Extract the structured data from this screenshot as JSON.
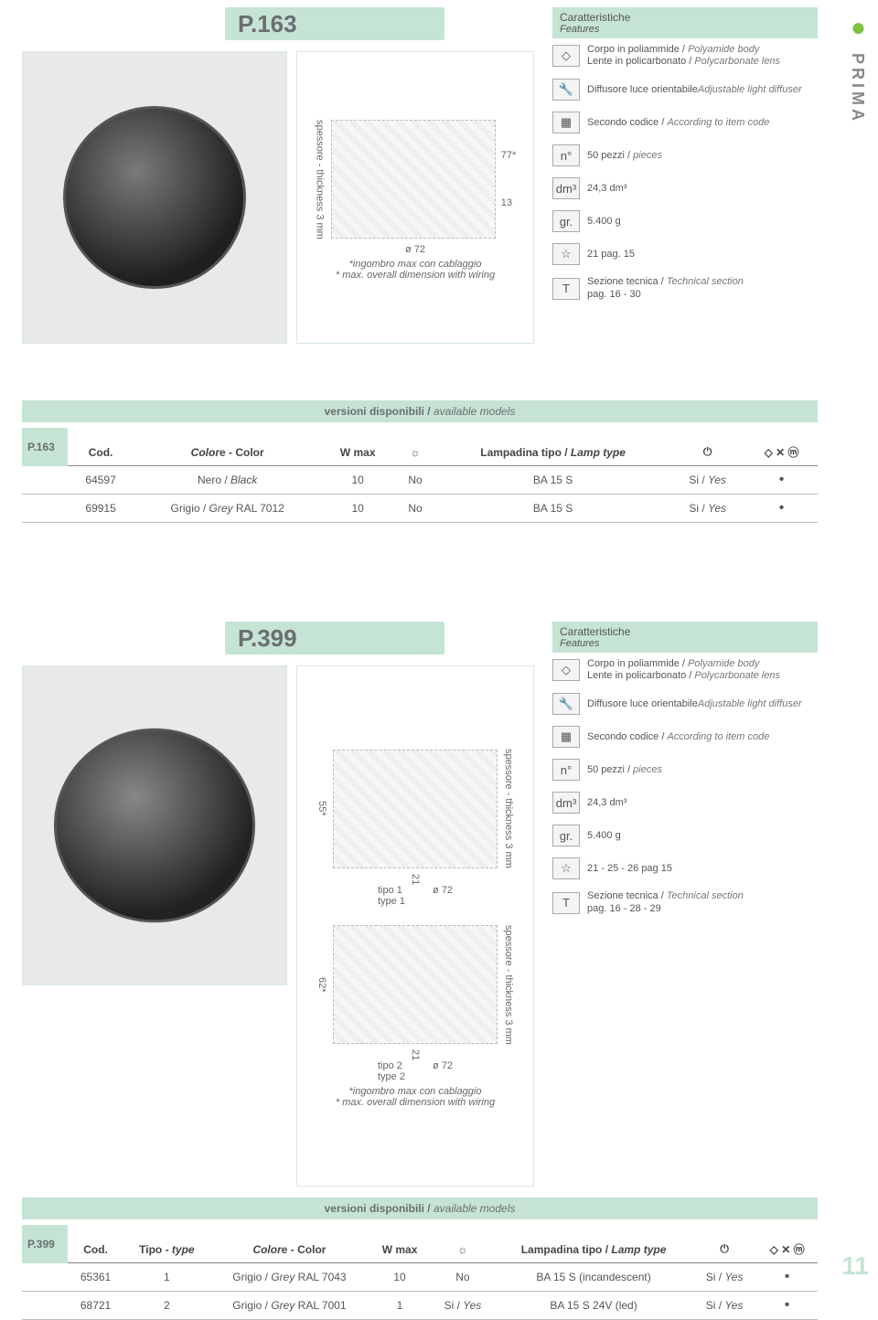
{
  "brand": "PRIMA",
  "page_number": "11",
  "p163": {
    "code": "P.163",
    "features_header": "Caratteristiche",
    "features_header_en": "Features",
    "features": [
      {
        "icon": "◇",
        "it": "Corpo in poliammide / ",
        "en": "Polyamide body",
        "it2": "Lente in policarbonato / ",
        "en2": "Polycarbonate lens"
      },
      {
        "icon": "🔧",
        "it": "Diffusore luce orientabile",
        "en": "Adjustable light diffuser"
      },
      {
        "icon": "▦",
        "it": "Secondo codice / ",
        "en": "According to item code"
      },
      {
        "icon": "n°",
        "it": "50 pezzi / ",
        "en": "pieces"
      },
      {
        "icon": "dm³",
        "it": "24,3 dm³",
        "en": ""
      },
      {
        "icon": "gr.",
        "it": "5.400 g",
        "en": ""
      },
      {
        "icon": "☆",
        "it": "21 pag. 15",
        "en": ""
      },
      {
        "icon": "T",
        "it": "Sezione tecnica / ",
        "en": "Technical section",
        "it2": "pag. 16 - 30",
        "en2": ""
      }
    ],
    "note_star": "*ingombro max con cablaggio",
    "note_star_en": "* max. overall dimension with wiring",
    "drawing": {
      "thickness": "spessore -\nthickness 3 mm",
      "h": "77*",
      "d": "13",
      "diam": "ø 72"
    },
    "avail": "versioni disponibili / ",
    "avail_en": "available models",
    "table": {
      "headers": [
        "Cod.",
        "Colore - Color",
        "W max",
        "☼",
        "Lampadina tipo / Lamp type",
        "⏻",
        "◇ ✕ ⓜ"
      ],
      "rows": [
        [
          "64597",
          "Nero / Black",
          "10",
          "No",
          "BA 15 S",
          "Si / Yes",
          "•"
        ],
        [
          "69915",
          "Grigio / Grey RAL 7012",
          "10",
          "No",
          "BA 15 S",
          "Si / Yes",
          "•"
        ]
      ]
    }
  },
  "p399": {
    "code": "P.399",
    "features_header": "Caratteristiche",
    "features_header_en": "Features",
    "features": [
      {
        "icon": "◇",
        "it": "Corpo in poliammide / ",
        "en": "Polyamide body",
        "it2": "Lente in policarbonato / ",
        "en2": "Polycarbonate lens"
      },
      {
        "icon": "🔧",
        "it": "Diffusore luce orientabile",
        "en": "Adjustable light diffuser"
      },
      {
        "icon": "▦",
        "it": "Secondo codice / ",
        "en": "According to item code"
      },
      {
        "icon": "n°",
        "it": "50 pezzi / ",
        "en": "pieces"
      },
      {
        "icon": "dm³",
        "it": "24,3 dm³",
        "en": ""
      },
      {
        "icon": "gr.",
        "it": "5.400 g",
        "en": ""
      },
      {
        "icon": "☆",
        "it": "21 - 25 - 26 pag 15",
        "en": ""
      },
      {
        "icon": "T",
        "it": "Sezione tecnica / ",
        "en": "Technical section",
        "it2": "pag. 16 - 28 - 29",
        "en2": ""
      }
    ],
    "note_star": "*ingombro max con cablaggio",
    "note_star_en": "* max. overall dimension with wiring",
    "drawing": {
      "thickness": "spessore -\nthickness 3 mm",
      "h1": "55*",
      "h2": "62*",
      "d": "21",
      "diam": "ø 72",
      "tipo1": "tipo 1\ntype 1",
      "tipo2": "tipo 2\ntype 2"
    },
    "avail": "versioni disponibili / ",
    "avail_en": "available models",
    "table": {
      "headers": [
        "Cod.",
        "Tipo - type",
        "Colore - Color",
        "W max",
        "☼",
        "Lampadina tipo / Lamp type",
        "⏻",
        "◇ ✕ ⓜ"
      ],
      "rows": [
        [
          "65361",
          "1",
          "Grigio / Grey RAL 7043",
          "10",
          "No",
          "BA 15 S (incandescent)",
          "Si / Yes",
          "•"
        ],
        [
          "68721",
          "2",
          "Grigio / Grey RAL 7001",
          "1",
          "Si / Yes",
          "BA 15 S 24V (led)",
          "Si / Yes",
          "•"
        ]
      ]
    }
  }
}
